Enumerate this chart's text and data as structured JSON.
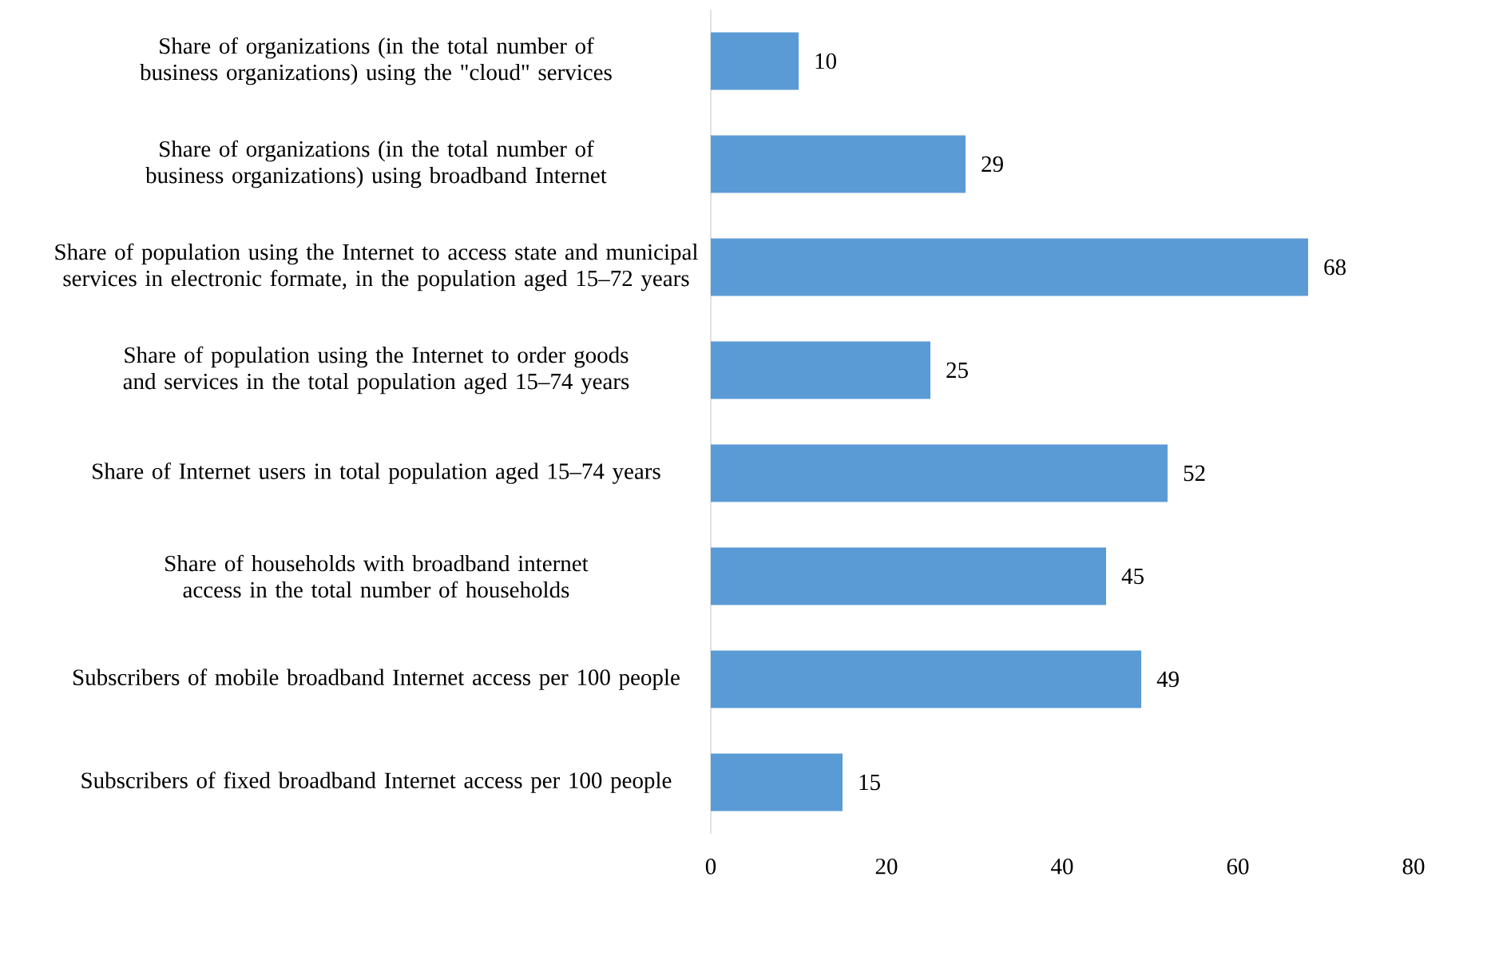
{
  "chart_data": {
    "type": "bar",
    "orientation": "horizontal",
    "categories": [
      "Share of organizations (in the total number of business organizations) using the \"cloud\" services",
      "Share of organizations (in the total number of business organizations) using broadband Internet",
      "Share of population using the Internet to access state and municipal services in electronic formate, in the population aged 15–72 years",
      "Share of population using the Internet to order goods and services in the total population aged 15–74 years",
      "Share of Internet users in total population aged 15–74 years",
      "Share of households with broadband internet access in the total number of households",
      "Subscribers of mobile broadband Internet access per 100 people",
      "Subscribers of fixed broadband Internet access per 100 people"
    ],
    "values": [
      10,
      29,
      68,
      25,
      52,
      45,
      49,
      15
    ],
    "color": "#5b9bd5",
    "xlim": [
      0,
      80
    ],
    "xticks": [
      0,
      20,
      40,
      60,
      80
    ],
    "data_labels": true
  }
}
